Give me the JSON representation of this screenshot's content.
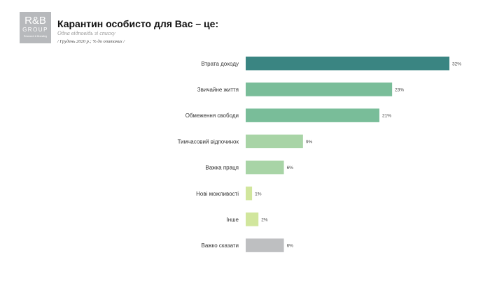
{
  "logo": {
    "line1": "R&B",
    "line2": "GROUP",
    "line3": "Research & Branding"
  },
  "header": {
    "title": "Карантин особисто для Вас – це:",
    "subtitle": "Одна відповідь зі списку",
    "note": "/ Грудень 2020 р.; % до опитаних /"
  },
  "chart_data": {
    "type": "bar",
    "orientation": "horizontal",
    "title": "Карантин особисто для Вас – це:",
    "categories": [
      "Втрата доходу",
      "Звичайне життя",
      "Обмеження свободи",
      "Тимчасовий відпочинок",
      "Важка праця",
      "Нові можливості",
      "Інше",
      "Важко сказати"
    ],
    "values": [
      32,
      23,
      21,
      9,
      6,
      1,
      2,
      6
    ],
    "value_labels": [
      "32%",
      "23%",
      "21%",
      "9%",
      "6%",
      "1%",
      "2%",
      "6%"
    ],
    "colors": [
      "#3a8582",
      "#79bd99",
      "#79bd99",
      "#a8d4a6",
      "#a8d4a6",
      "#d1e69d",
      "#d1e69d",
      "#bebfc1"
    ],
    "xlim": [
      0,
      32
    ],
    "grid": false,
    "legend": "none"
  }
}
